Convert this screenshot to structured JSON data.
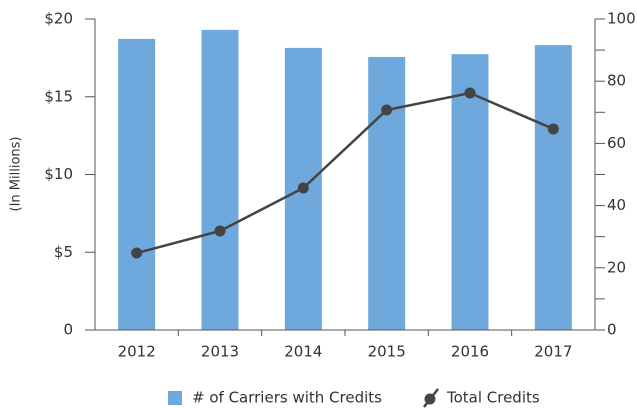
{
  "chart_data": {
    "type": "bar_line",
    "y_label": "(In Millions)",
    "categories": [
      "2012",
      "2013",
      "2014",
      "2015",
      "2016",
      "2017"
    ],
    "series": [
      {
        "name": "# of Carriers with Credits",
        "type": "bar",
        "axis": "y2",
        "color": "#6fa8dc",
        "values": [
          93.6,
          96.5,
          90.7,
          87.8,
          88.7,
          91.6
        ]
      },
      {
        "name": "Total Credits",
        "type": "line",
        "axis": "y",
        "color": "#444444",
        "values": [
          4.95,
          6.37,
          9.13,
          14.15,
          15.24,
          12.93
        ]
      }
    ],
    "ylim": [
      0,
      20
    ],
    "yticks": [
      {
        "value": 0,
        "label": "0"
      },
      {
        "value": 5,
        "label": "$5"
      },
      {
        "value": 10,
        "label": "$10"
      },
      {
        "value": 15,
        "label": "$15"
      },
      {
        "value": 20,
        "label": "$20"
      }
    ],
    "y2lim": [
      0,
      100
    ],
    "y2ticks": [
      0,
      20,
      40,
      60,
      80,
      100
    ],
    "y2minor_ticks": [
      10,
      30,
      50,
      70,
      90
    ],
    "legend": "bottom"
  }
}
